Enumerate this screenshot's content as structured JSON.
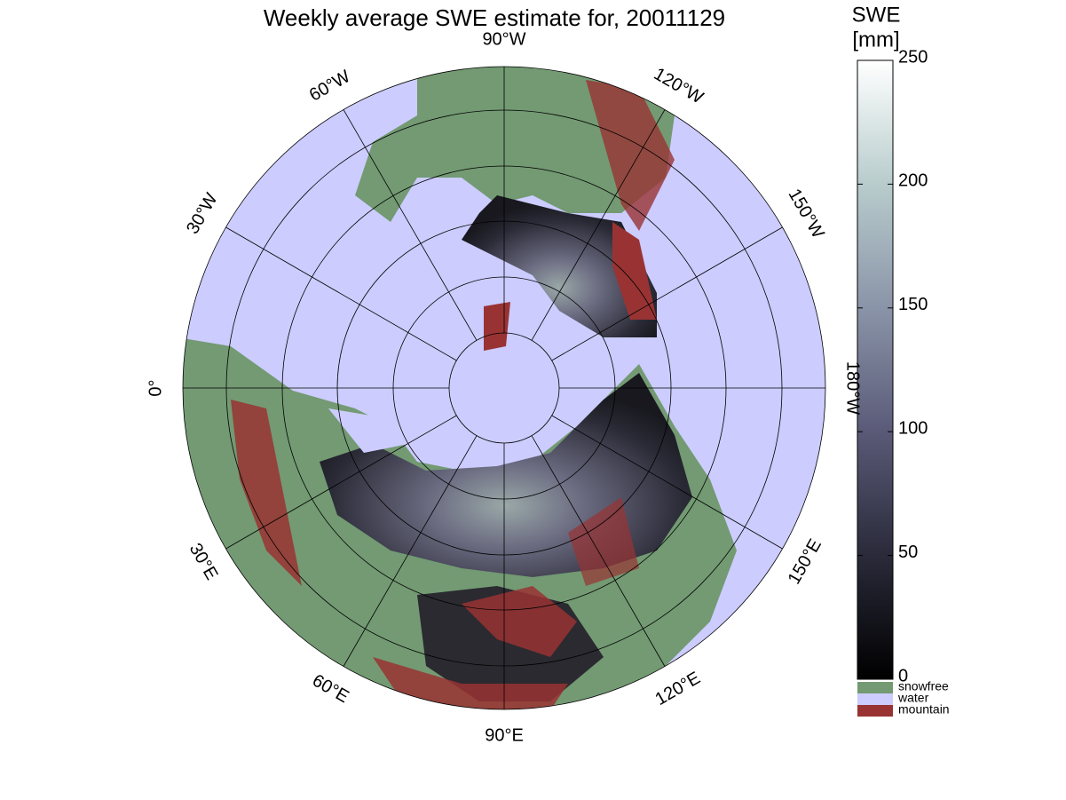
{
  "map": {
    "title": "Weekly average SWE estimate for, 20011129",
    "longitude_labels": [
      "0°",
      "30°W",
      "60°W",
      "90°W",
      "120°W",
      "150°W",
      "180°W",
      "150°E",
      "120°E",
      "90°E",
      "60°E",
      "30°E"
    ],
    "colorbar": {
      "title": [
        "SWE",
        "[mm]"
      ],
      "lim": [
        0,
        250
      ],
      "ticks": [
        0,
        50,
        100,
        150,
        200,
        250
      ],
      "colors": [
        "#000000",
        "#2a2a3a",
        "#5a5a78",
        "#8a94a8",
        "#b8cccc",
        "#ffffff"
      ]
    },
    "legend": [
      {
        "label": "snowfree",
        "color": "#739a73"
      },
      {
        "label": "water",
        "color": "#ccccff"
      },
      {
        "label": "mountain",
        "color": "#993333"
      }
    ]
  }
}
